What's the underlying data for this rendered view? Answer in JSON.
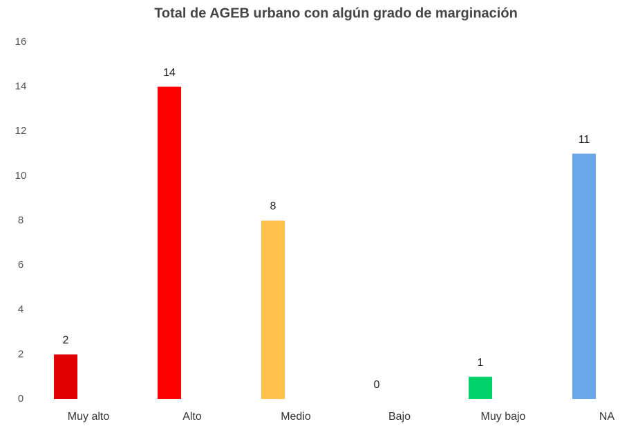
{
  "chart_data": {
    "type": "bar",
    "title": "Total de AGEB urbano con algún grado de marginación",
    "categories": [
      "Muy alto",
      "Alto",
      "Medio",
      "Bajo",
      "Muy bajo",
      "NA"
    ],
    "values": [
      2,
      14,
      8,
      0,
      1,
      11
    ],
    "colors": [
      "#e00000",
      "#ff0000",
      "#ffc04c",
      "#cccccc",
      "#00d26a",
      "#6aa6e8"
    ],
    "ylim": [
      0,
      16
    ],
    "yticks": [
      0,
      2,
      4,
      6,
      8,
      10,
      12,
      14,
      16
    ],
    "grid": false
  }
}
